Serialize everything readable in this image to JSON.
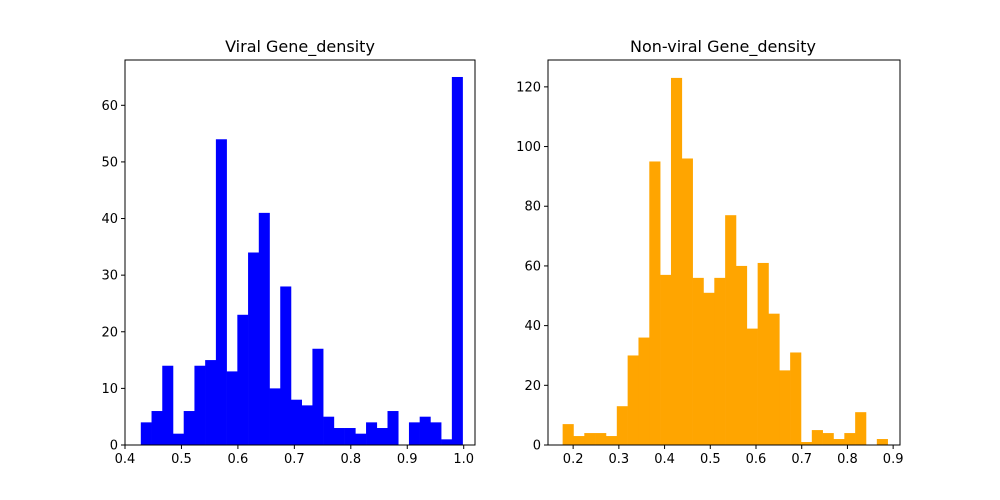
{
  "chart_data": [
    {
      "type": "bar",
      "title": "Viral Gene_density",
      "xlabel": "",
      "ylabel": "",
      "color": "#0000ff",
      "xlim": [
        0.4,
        1.02
      ],
      "ylim": [
        0,
        68
      ],
      "xticks": [
        0.4,
        0.5,
        0.6,
        0.7,
        0.8,
        0.9,
        1.0
      ],
      "xtick_labels": [
        "0.4",
        "0.5",
        "0.6",
        "0.7",
        "0.8",
        "0.9",
        "1.0"
      ],
      "yticks": [
        0,
        10,
        20,
        30,
        40,
        50,
        60
      ],
      "ytick_labels": [
        "0",
        "10",
        "20",
        "30",
        "40",
        "50",
        "60"
      ],
      "bins": {
        "start": 0.428,
        "width": 0.019,
        "values": [
          4,
          6,
          14,
          2,
          6,
          14,
          15,
          54,
          13,
          23,
          34,
          41,
          10,
          28,
          8,
          7,
          17,
          5,
          3,
          3,
          2,
          4,
          3,
          6,
          0,
          4,
          5,
          4,
          1,
          65
        ]
      }
    },
    {
      "type": "bar",
      "title": "Non-viral Gene_density",
      "xlabel": "",
      "ylabel": "",
      "color": "#ffa500",
      "xlim": [
        0.145,
        0.915
      ],
      "ylim": [
        0,
        129
      ],
      "xticks": [
        0.2,
        0.3,
        0.4,
        0.5,
        0.6,
        0.7,
        0.8,
        0.9
      ],
      "xtick_labels": [
        "0.2",
        "0.3",
        "0.4",
        "0.5",
        "0.6",
        "0.7",
        "0.8",
        "0.9"
      ],
      "yticks": [
        0,
        20,
        40,
        60,
        80,
        100,
        120
      ],
      "ytick_labels": [
        "0",
        "20",
        "40",
        "60",
        "80",
        "100",
        "120"
      ],
      "bins": {
        "start": 0.177,
        "width": 0.0237,
        "values": [
          7,
          3,
          4,
          4,
          3,
          13,
          30,
          36,
          95,
          57,
          123,
          96,
          56,
          51,
          56,
          77,
          60,
          39,
          61,
          44,
          25,
          31,
          1,
          5,
          4,
          2,
          4,
          11,
          0,
          2
        ]
      }
    }
  ]
}
